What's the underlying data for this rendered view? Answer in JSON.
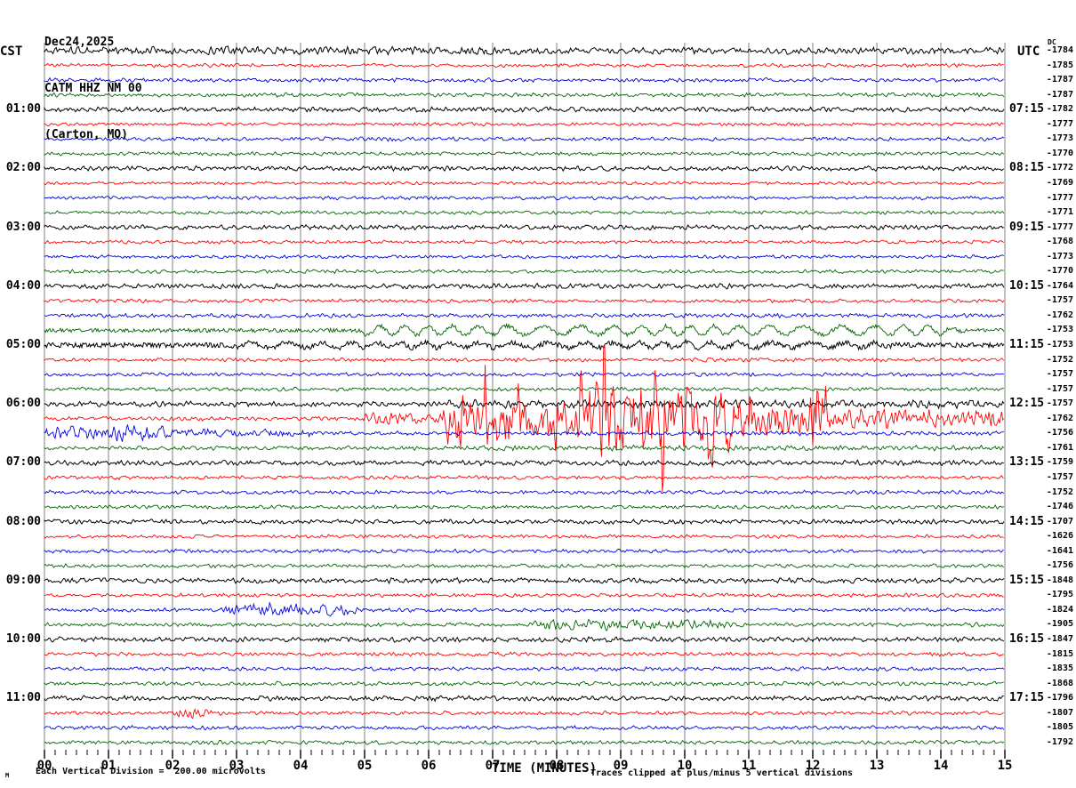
{
  "title": {
    "line1": "Dec24,2025",
    "line2": "CATM HHZ NM 00",
    "line3": "(Carton, MO)"
  },
  "axes": {
    "left_header": "CST",
    "right_header": "UTC",
    "dc_header": "DC",
    "xlabel": "TIME (MINUTES)",
    "x_ticks": [
      "00",
      "01",
      "02",
      "03",
      "04",
      "05",
      "06",
      "07",
      "08",
      "09",
      "10",
      "11",
      "12",
      "13",
      "14",
      "15"
    ]
  },
  "footer": {
    "watermark": "M",
    "scale_note": "Each Vertical Division =  200.00 microvolts",
    "clip_note": "Traces clipped at plus/minus 5 vertical divisions"
  },
  "chart_data": {
    "type": "line",
    "subtype": "helicorder-seismogram",
    "station": "CATM HHZ NM 00",
    "location": "(Carton, MO)",
    "date": "Dec24,2025",
    "xlabel": "TIME (MINUTES)",
    "x_range_minutes": [
      0,
      15
    ],
    "minutes_per_line": 15,
    "lines_per_hour": 4,
    "clip_divisions": 5,
    "microvolts_per_division": 200.0,
    "grid": true,
    "colors": {
      "black": "#000000",
      "red": "#ff0000",
      "blue": "#0000dd",
      "green": "#046404",
      "grid": "#808080"
    },
    "rows": [
      {
        "cst": null,
        "utc": null,
        "dc": -1784,
        "color": "black",
        "amp": 4.2,
        "lowfreq": false,
        "events": [
          {
            "from": 0,
            "to": 7.5,
            "amp": 1.2
          }
        ]
      },
      {
        "cst": null,
        "utc": null,
        "dc": -1785,
        "color": "red",
        "amp": 2.3,
        "lowfreq": false,
        "events": []
      },
      {
        "cst": null,
        "utc": null,
        "dc": -1787,
        "color": "blue",
        "amp": 2.6,
        "lowfreq": false,
        "events": []
      },
      {
        "cst": null,
        "utc": null,
        "dc": -1787,
        "color": "green",
        "amp": 2.6,
        "lowfreq": false,
        "events": []
      },
      {
        "cst": "01:00",
        "utc": "07:15",
        "dc": -1782,
        "color": "black",
        "amp": 3.2,
        "lowfreq": false,
        "events": []
      },
      {
        "cst": null,
        "utc": null,
        "dc": -1777,
        "color": "red",
        "amp": 2.2,
        "lowfreq": false,
        "events": []
      },
      {
        "cst": null,
        "utc": null,
        "dc": -1773,
        "color": "blue",
        "amp": 2.4,
        "lowfreq": false,
        "events": []
      },
      {
        "cst": null,
        "utc": null,
        "dc": -1770,
        "color": "green",
        "amp": 2.4,
        "lowfreq": false,
        "events": []
      },
      {
        "cst": "02:00",
        "utc": "08:15",
        "dc": -1772,
        "color": "black",
        "amp": 3.0,
        "lowfreq": false,
        "events": []
      },
      {
        "cst": null,
        "utc": null,
        "dc": -1769,
        "color": "red",
        "amp": 2.0,
        "lowfreq": false,
        "events": []
      },
      {
        "cst": null,
        "utc": null,
        "dc": -1777,
        "color": "blue",
        "amp": 2.2,
        "lowfreq": false,
        "events": []
      },
      {
        "cst": null,
        "utc": null,
        "dc": -1771,
        "color": "green",
        "amp": 2.2,
        "lowfreq": false,
        "events": []
      },
      {
        "cst": "03:00",
        "utc": "09:15",
        "dc": -1777,
        "color": "black",
        "amp": 3.0,
        "lowfreq": false,
        "events": []
      },
      {
        "cst": null,
        "utc": null,
        "dc": -1768,
        "color": "red",
        "amp": 2.2,
        "lowfreq": false,
        "events": []
      },
      {
        "cst": null,
        "utc": null,
        "dc": -1773,
        "color": "blue",
        "amp": 2.2,
        "lowfreq": false,
        "events": []
      },
      {
        "cst": null,
        "utc": null,
        "dc": -1770,
        "color": "green",
        "amp": 2.3,
        "lowfreq": false,
        "events": []
      },
      {
        "cst": "04:00",
        "utc": "10:15",
        "dc": -1764,
        "color": "black",
        "amp": 3.2,
        "lowfreq": false,
        "events": []
      },
      {
        "cst": null,
        "utc": null,
        "dc": -1757,
        "color": "red",
        "amp": 2.4,
        "lowfreq": false,
        "events": []
      },
      {
        "cst": null,
        "utc": null,
        "dc": -1762,
        "color": "blue",
        "amp": 2.6,
        "lowfreq": false,
        "events": []
      },
      {
        "cst": null,
        "utc": null,
        "dc": -1753,
        "color": "green",
        "amp": 2.4,
        "lowfreq": true,
        "events": [
          {
            "from": 5,
            "to": 14,
            "amp": 5
          }
        ]
      },
      {
        "cst": "05:00",
        "utc": "11:15",
        "dc": -1753,
        "color": "black",
        "amp": 3.0,
        "lowfreq": true,
        "events": [
          {
            "from": 3,
            "to": 13,
            "amp": 3
          }
        ]
      },
      {
        "cst": null,
        "utc": null,
        "dc": -1752,
        "color": "red",
        "amp": 2.4,
        "lowfreq": false,
        "events": []
      },
      {
        "cst": null,
        "utc": null,
        "dc": -1757,
        "color": "blue",
        "amp": 2.4,
        "lowfreq": false,
        "events": []
      },
      {
        "cst": null,
        "utc": null,
        "dc": -1757,
        "color": "green",
        "amp": 2.4,
        "lowfreq": false,
        "events": []
      },
      {
        "cst": "06:00",
        "utc": "12:15",
        "dc": -1757,
        "color": "black",
        "amp": 3.4,
        "lowfreq": false,
        "events": [
          {
            "from": 6.3,
            "to": 15,
            "amp": 1.8
          }
        ]
      },
      {
        "cst": null,
        "utc": null,
        "dc": -1762,
        "color": "red",
        "amp": 2.6,
        "lowfreq": false,
        "events": [
          {
            "from": 5.0,
            "to": 6.3,
            "amp": 5
          },
          {
            "from": 6.3,
            "to": 8.6,
            "amp": 28,
            "spiky": true
          },
          {
            "from": 8.6,
            "to": 10.4,
            "amp": 40,
            "spiky": true
          },
          {
            "from": 10.4,
            "to": 12.0,
            "amp": 20,
            "spiky": true
          },
          {
            "from": 12.0,
            "to": 15.0,
            "amp": 10
          }
        ]
      },
      {
        "cst": null,
        "utc": null,
        "dc": -1756,
        "color": "blue",
        "amp": 2.8,
        "lowfreq": false,
        "events": [
          {
            "from": 0,
            "to": 1.8,
            "amp": 7
          },
          {
            "from": 1.8,
            "to": 4,
            "amp": 3
          }
        ]
      },
      {
        "cst": null,
        "utc": null,
        "dc": -1761,
        "color": "green",
        "amp": 2.6,
        "lowfreq": false,
        "events": [
          {
            "from": 6.5,
            "to": 15,
            "amp": 0.8
          }
        ]
      },
      {
        "cst": "07:00",
        "utc": "13:15",
        "dc": -1759,
        "color": "black",
        "amp": 3.2,
        "lowfreq": false,
        "events": []
      },
      {
        "cst": null,
        "utc": null,
        "dc": -1757,
        "color": "red",
        "amp": 2.4,
        "lowfreq": false,
        "events": []
      },
      {
        "cst": null,
        "utc": null,
        "dc": -1752,
        "color": "blue",
        "amp": 2.4,
        "lowfreq": false,
        "events": []
      },
      {
        "cst": null,
        "utc": null,
        "dc": -1746,
        "color": "green",
        "amp": 2.4,
        "lowfreq": false,
        "events": []
      },
      {
        "cst": "08:00",
        "utc": "14:15",
        "dc": -1707,
        "color": "black",
        "amp": 3.0,
        "lowfreq": false,
        "events": []
      },
      {
        "cst": null,
        "utc": null,
        "dc": -1626,
        "color": "red",
        "amp": 2.2,
        "lowfreq": false,
        "events": []
      },
      {
        "cst": null,
        "utc": null,
        "dc": -1641,
        "color": "blue",
        "amp": 2.4,
        "lowfreq": false,
        "events": []
      },
      {
        "cst": null,
        "utc": null,
        "dc": -1756,
        "color": "green",
        "amp": 2.4,
        "lowfreq": false,
        "events": []
      },
      {
        "cst": "09:00",
        "utc": "15:15",
        "dc": -1848,
        "color": "black",
        "amp": 3.2,
        "lowfreq": false,
        "events": []
      },
      {
        "cst": null,
        "utc": null,
        "dc": -1795,
        "color": "red",
        "amp": 2.4,
        "lowfreq": false,
        "events": []
      },
      {
        "cst": null,
        "utc": null,
        "dc": -1824,
        "color": "blue",
        "amp": 2.5,
        "lowfreq": false,
        "events": [
          {
            "from": 2.9,
            "to": 4.6,
            "amp": 6
          }
        ]
      },
      {
        "cst": null,
        "utc": null,
        "dc": -1905,
        "color": "green",
        "amp": 2.6,
        "lowfreq": false,
        "events": [
          {
            "from": 7.7,
            "to": 10.4,
            "amp": 4
          }
        ]
      },
      {
        "cst": "10:00",
        "utc": "16:15",
        "dc": -1847,
        "color": "black",
        "amp": 3.2,
        "lowfreq": false,
        "events": []
      },
      {
        "cst": null,
        "utc": null,
        "dc": -1815,
        "color": "red",
        "amp": 2.4,
        "lowfreq": false,
        "events": []
      },
      {
        "cst": null,
        "utc": null,
        "dc": -1835,
        "color": "blue",
        "amp": 2.4,
        "lowfreq": false,
        "events": []
      },
      {
        "cst": null,
        "utc": null,
        "dc": -1868,
        "color": "green",
        "amp": 2.6,
        "lowfreq": false,
        "events": []
      },
      {
        "cst": "11:00",
        "utc": "17:15",
        "dc": -1796,
        "color": "black",
        "amp": 3.2,
        "lowfreq": false,
        "events": []
      },
      {
        "cst": null,
        "utc": null,
        "dc": -1807,
        "color": "red",
        "amp": 2.4,
        "lowfreq": false,
        "events": [
          {
            "from": 2.1,
            "to": 2.4,
            "amp": 5
          }
        ]
      },
      {
        "cst": null,
        "utc": null,
        "dc": -1805,
        "color": "blue",
        "amp": 2.5,
        "lowfreq": false,
        "events": []
      },
      {
        "cst": null,
        "utc": null,
        "dc": -1792,
        "color": "green",
        "amp": 2.6,
        "lowfreq": false,
        "events": []
      }
    ]
  }
}
